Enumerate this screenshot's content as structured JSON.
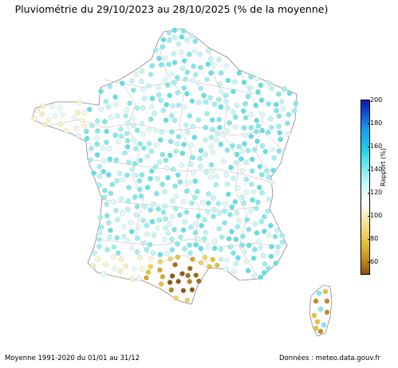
{
  "title": "Pluviométrie du 29/10/2023 au 28/10/2025 (% de la moyenne)",
  "colorbar": {
    "label": "Rapport (%)",
    "ticks": [
      "200",
      "180",
      "160",
      "140",
      "120",
      "100",
      "80",
      "60"
    ],
    "range": [
      50,
      200
    ]
  },
  "footer": {
    "left": "Moyenne 1991-2020 du 01/01 au 31/12",
    "right": "Données : meteo.data.gouv.fr"
  },
  "map": {
    "region": "France métropolitaine",
    "colors": {
      "dry": "#8a5a12",
      "normal": "#ffffff",
      "wet": "#7ee8ee",
      "very_wet": "#0a1ab0"
    }
  }
}
